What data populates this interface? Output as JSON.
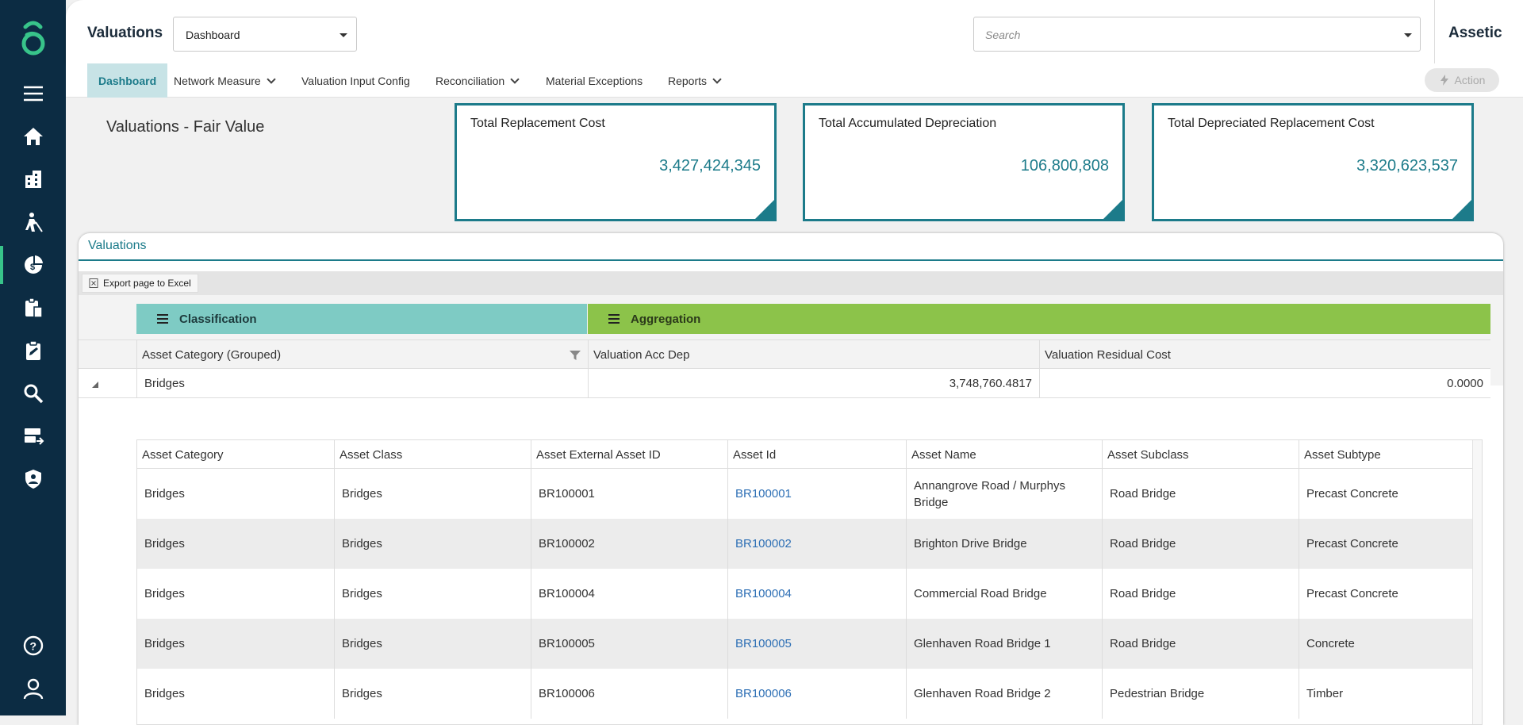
{
  "sidebar": {
    "items": [
      {
        "icon": "menu-icon"
      },
      {
        "icon": "home-icon"
      },
      {
        "icon": "buildings-icon"
      },
      {
        "icon": "worker-icon"
      },
      {
        "icon": "valuation-icon",
        "active": true
      },
      {
        "icon": "clipboard-building-icon"
      },
      {
        "icon": "clipboard-edit-icon"
      },
      {
        "icon": "search-icon"
      },
      {
        "icon": "data-transfer-icon"
      },
      {
        "icon": "shield-user-icon"
      },
      {
        "icon": "help-icon"
      },
      {
        "icon": "user-icon"
      }
    ]
  },
  "header": {
    "title": "Valuations",
    "dashboard_select": "Dashboard",
    "search_placeholder": "Search",
    "brand": "Assetic"
  },
  "nav": {
    "items": [
      {
        "label": "Dashboard",
        "active": true
      },
      {
        "label": "Network Measure",
        "dropdown": true
      },
      {
        "label": "Valuation Input Config"
      },
      {
        "label": "Reconciliation",
        "dropdown": true
      },
      {
        "label": "Material Exceptions"
      },
      {
        "label": "Reports",
        "dropdown": true
      }
    ],
    "action_label": "Action"
  },
  "page": {
    "heading": "Valuations - Fair Value"
  },
  "kpis": [
    {
      "label": "Total Replacement Cost",
      "value": "3,427,424,345"
    },
    {
      "label": "Total Accumulated Depreciation",
      "value": "106,800,808"
    },
    {
      "label": "Total Depreciated Replacement Cost",
      "value": "3,320,623,537"
    }
  ],
  "panel": {
    "title": "Valuations",
    "export_label": "Export page to Excel",
    "pivot": {
      "classification": "Classification",
      "aggregation": "Aggregation"
    },
    "columns": [
      "Asset Category (Grouped)",
      "Valuation Acc Dep",
      "Valuation Residual Cost"
    ],
    "group_row": {
      "category": "Bridges",
      "acc_dep": "3,748,760.4817",
      "residual": "0.0000"
    },
    "detail_columns": [
      "Asset Category",
      "Asset Class",
      "Asset External Asset ID",
      "Asset Id",
      "Asset Name",
      "Asset Subclass",
      "Asset Subtype"
    ],
    "detail_rows": [
      [
        "Bridges",
        "Bridges",
        "BR100001",
        "BR100001",
        "Annangrove Road / Murphys Bridge",
        "Road Bridge",
        "Precast Concrete"
      ],
      [
        "Bridges",
        "Bridges",
        "BR100002",
        "BR100002",
        "Brighton Drive Bridge",
        "Road Bridge",
        "Precast Concrete"
      ],
      [
        "Bridges",
        "Bridges",
        "BR100004",
        "BR100004",
        "Commercial Road Bridge",
        "Road Bridge",
        "Precast Concrete"
      ],
      [
        "Bridges",
        "Bridges",
        "BR100005",
        "BR100005",
        "Glenhaven Road Bridge 1",
        "Road Bridge",
        "Concrete"
      ],
      [
        "Bridges",
        "Bridges",
        "BR100006",
        "BR100006",
        "Glenhaven Road Bridge 2",
        "Pedestrian Bridge",
        "Timber"
      ]
    ]
  },
  "colors": {
    "sidebar": "#0c2c43",
    "accent": "#1c7b8a",
    "classification": "#7ecbc4",
    "aggregation": "#8cc34a",
    "active_indicator": "#38c48a",
    "link": "#2d6fb5"
  }
}
